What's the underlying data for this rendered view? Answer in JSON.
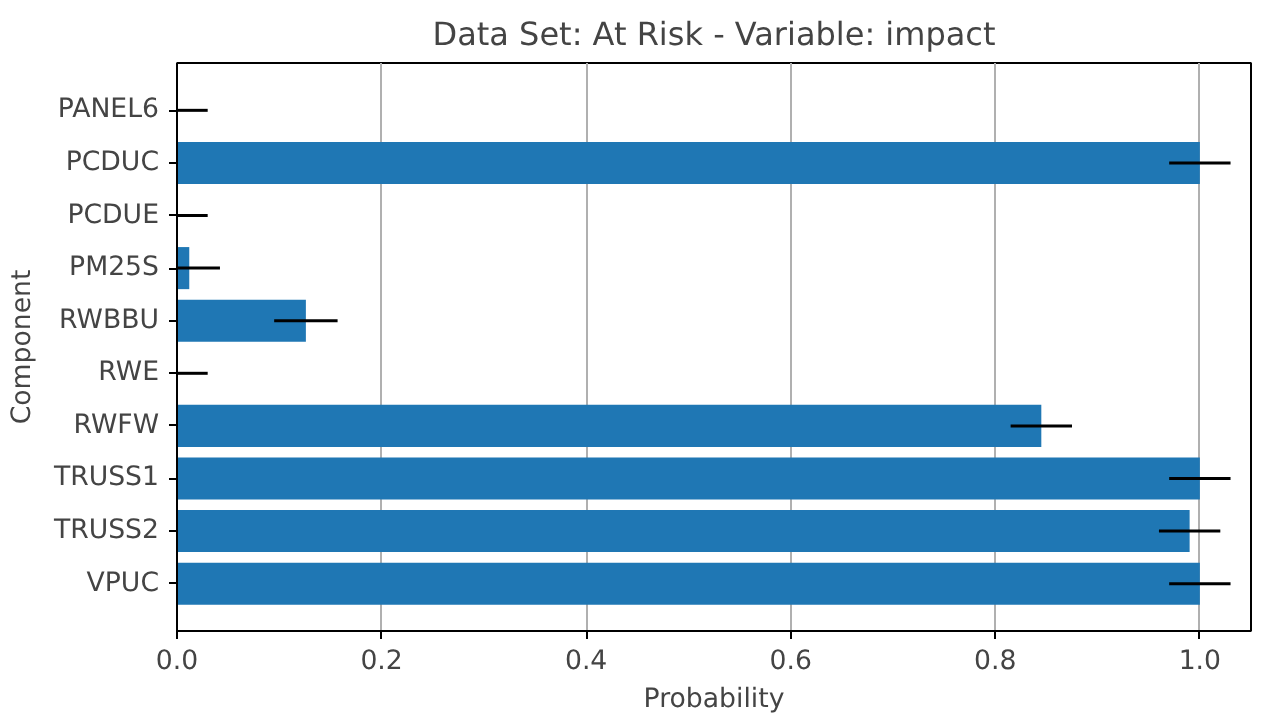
{
  "chart_data": {
    "type": "bar",
    "orientation": "horizontal",
    "title": "Data Set: At Risk - Variable: impact",
    "xlabel": "Probability",
    "ylabel": "Component",
    "categories": [
      "PANEL6",
      "PCDUC",
      "PCDUE",
      "PM25S",
      "RWBBU",
      "RWE",
      "RWFW",
      "TRUSS1",
      "TRUSS2",
      "VPUC"
    ],
    "values": [
      0,
      1.0,
      0,
      0.012,
      0.126,
      0,
      0.845,
      1.0,
      0.99,
      1.0
    ],
    "errors": [
      [
        0,
        0.03
      ],
      0.03,
      [
        0,
        0.03
      ],
      [
        0,
        0.042
      ],
      0.031,
      [
        0,
        0.03
      ],
      0.03,
      0.03,
      0.03,
      0.03
    ],
    "color": "#1f77b4",
    "xlim": [
      0,
      1.05
    ],
    "xticks": [
      {
        "value": 0,
        "label": "0.0"
      },
      0.2,
      0.4,
      0.6,
      0.8,
      {
        "value": 1,
        "label": "1.0"
      }
    ],
    "grid": "x"
  }
}
